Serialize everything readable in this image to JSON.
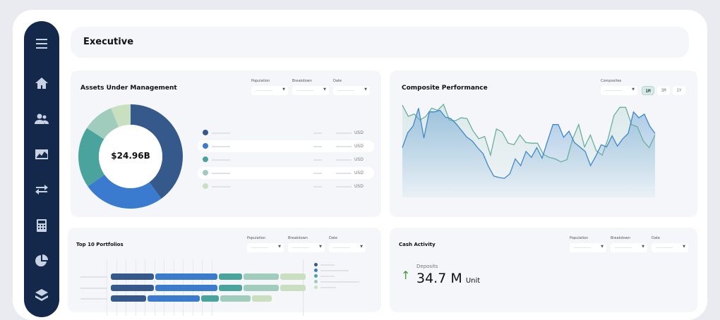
{
  "header": {
    "title": "Executive"
  },
  "sidebar": {
    "items": [
      "menu-icon",
      "home-icon",
      "users-icon",
      "chart-icon",
      "transfer-icon",
      "calculator-icon",
      "pie-chart-icon",
      "layers-icon"
    ]
  },
  "aum": {
    "title": "Assets Under Management",
    "filters": [
      "Population",
      "Breakdown",
      "Date"
    ],
    "total": "$24.96B",
    "unit": "USD",
    "chart_data": {
      "type": "pie",
      "values": [
        40,
        25.3,
        18.9,
        9.7,
        6.1
      ],
      "colors": [
        "#34598a",
        "#3a7bd0",
        "#4aa39c",
        "#9fccbd",
        "#c9e0c0"
      ],
      "center_label": "$24.96B"
    }
  },
  "composite": {
    "title": "Composite Performance",
    "filter_label": "Composites",
    "ranges": [
      "1M",
      "3M",
      "1Y"
    ],
    "active_range": "1M",
    "chart_data": {
      "type": "area",
      "series": [
        {
          "color": "#3f88c8",
          "values": [
            41,
            61,
            70,
            94,
            54,
            89,
            89,
            91,
            82,
            80,
            73,
            64,
            55,
            50,
            41,
            33,
            16,
            3,
            1,
            0,
            6,
            26,
            17,
            36,
            28,
            41,
            27,
            50,
            72,
            72,
            55,
            63,
            48,
            42,
            36,
            17,
            30,
            45,
            42,
            57,
            43,
            53,
            60,
            89,
            81,
            86,
            70,
            60
          ]
        },
        {
          "color": "#6aae9e",
          "values": [
            98,
            83,
            86,
            78,
            83,
            94,
            91,
            99,
            78,
            77,
            81,
            80,
            64,
            53,
            56,
            31,
            66,
            62,
            47,
            45,
            58,
            48,
            47,
            47,
            32,
            28,
            26,
            22,
            25,
            53,
            72,
            42,
            58,
            37,
            31,
            53,
            84,
            95,
            95,
            72,
            69,
            50,
            41,
            58
          ]
        }
      ]
    }
  },
  "top10": {
    "title": "Top 10 Portfolios",
    "filters": [
      "Population",
      "Breakdown",
      "Date"
    ],
    "chart_data": {
      "type": "bar",
      "stacked": true,
      "colors": [
        "#34598a",
        "#3a7bd0",
        "#4aa39c",
        "#9fccbd",
        "#c9e0c0"
      ],
      "rows": [
        [
          61,
          88,
          33,
          50,
          36
        ],
        [
          61,
          88,
          33,
          50,
          36
        ],
        [
          50,
          74,
          25,
          43,
          28
        ]
      ]
    }
  },
  "cash": {
    "title": "Cash Activity",
    "filters": [
      "Population",
      "Breakdown",
      "Date"
    ],
    "metric_label": "Deposits",
    "metric_value": "34.7 M",
    "metric_unit": "Unit",
    "trend": "up",
    "trend_color": "#3f9a3a"
  }
}
